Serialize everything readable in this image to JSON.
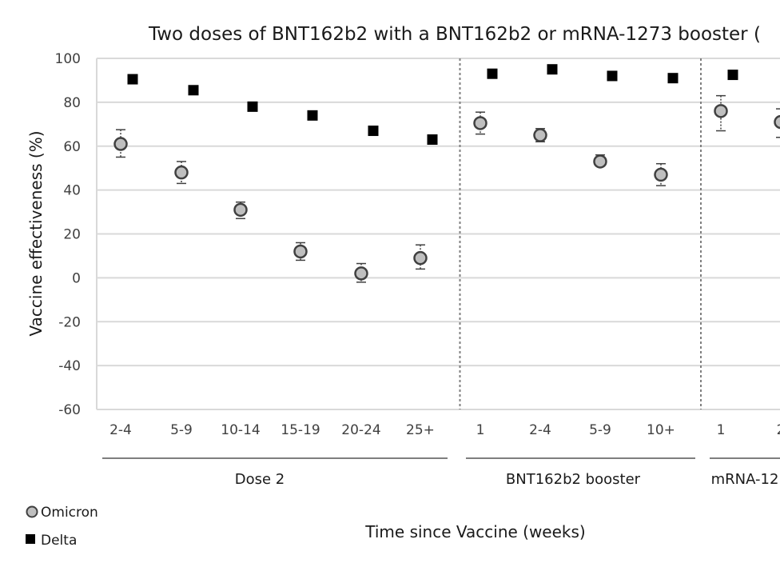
{
  "chart_data": {
    "type": "scatter",
    "title": "Two doses of BNT162b2 with a BNT162b2 or mRNA-1273 booster (",
    "xlabel": "Time since Vaccine (weeks)",
    "ylabel": "Vaccine effectiveness (%)",
    "ylim": [
      -60,
      100
    ],
    "yticks": [
      -60,
      -40,
      -20,
      0,
      20,
      40,
      60,
      80,
      100
    ],
    "grid": true,
    "legend_position": "bottom-left",
    "categories": [
      "2-4",
      "5-9",
      "10-14",
      "15-19",
      "20-24",
      "25+",
      "1",
      "2-4",
      "5-9",
      "10+",
      "1",
      "2"
    ],
    "groups": [
      {
        "label": "Dose 2",
        "categories": [
          "2-4",
          "5-9",
          "10-14",
          "15-19",
          "20-24",
          "25+"
        ]
      },
      {
        "label": "BNT162b2 booster",
        "categories": [
          "1",
          "2-4",
          "5-9",
          "10+"
        ]
      },
      {
        "label": "mRNA-12",
        "categories": [
          "1",
          "2"
        ]
      }
    ],
    "series": [
      {
        "name": "Omicron",
        "marker": "circle",
        "color": "#bfbfbf",
        "values": [
          61,
          48,
          31,
          12,
          2,
          9,
          70.5,
          65,
          53,
          47,
          76,
          71
        ],
        "error_low": [
          55,
          43,
          27,
          8,
          -2,
          4,
          65.5,
          62,
          51,
          42,
          67,
          64
        ],
        "error_high": [
          67.5,
          53,
          34.5,
          16,
          6.5,
          15,
          75.5,
          68,
          56,
          52,
          83,
          77
        ]
      },
      {
        "name": "Delta",
        "marker": "square",
        "color": "#000000",
        "values": [
          90.5,
          85.5,
          78,
          74,
          67,
          63,
          93,
          95,
          92,
          91,
          92.5,
          null
        ]
      }
    ]
  }
}
